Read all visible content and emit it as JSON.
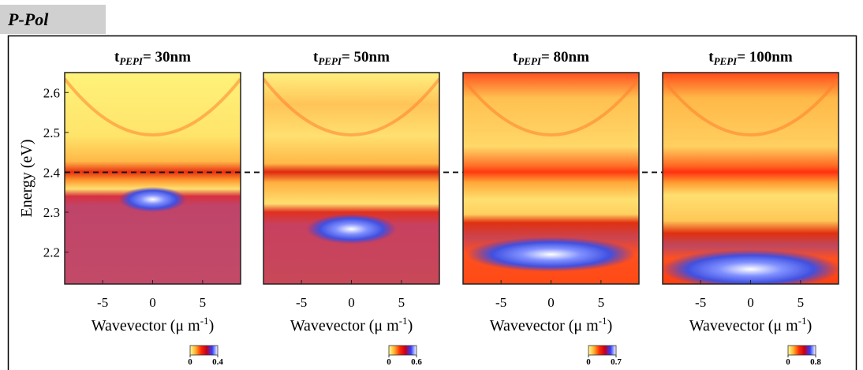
{
  "header": "P-Pol",
  "chart_data": [
    {
      "type": "heatmap",
      "title": {
        "main": "t",
        "sub": "PEPI",
        "rest": "= 30nm"
      },
      "xlabel": {
        "text": "Wavevector (μ m",
        "sup": "-1",
        "end": ")"
      },
      "ylabel": "Energy (eV)",
      "xlim": [
        -8.8,
        8.8
      ],
      "xticks": [
        -5,
        0,
        5
      ],
      "ylim": [
        2.12,
        2.65
      ],
      "yticks": [
        2.2,
        2.3,
        2.4,
        2.5,
        2.6
      ],
      "clim": [
        0,
        0.4
      ],
      "cticks": [
        0,
        0.4
      ],
      "hline": 2.4,
      "colormap": [
        "#ffff99",
        "#ffb030",
        "#ff2a00",
        "#c00020",
        "#3040ff",
        "#ffffff"
      ]
    },
    {
      "type": "heatmap",
      "title": {
        "main": "t",
        "sub": "PEPI",
        "rest": "= 50nm"
      },
      "xlabel": {
        "text": "Wavevector (μ m",
        "sup": "-1",
        "end": ")"
      },
      "xlim": [
        -8.8,
        8.8
      ],
      "xticks": [
        -5,
        0,
        5
      ],
      "ylim": [
        2.12,
        2.65
      ],
      "clim": [
        0,
        0.6
      ],
      "cticks": [
        0,
        0.6
      ],
      "colormap": [
        "#ffff99",
        "#ffb030",
        "#ff2a00",
        "#c00020",
        "#3040ff",
        "#ffffff"
      ]
    },
    {
      "type": "heatmap",
      "title": {
        "main": "t",
        "sub": "PEPI",
        "rest": "= 80nm"
      },
      "xlabel": {
        "text": "Wavevector (μ m",
        "sup": "-1",
        "end": ")"
      },
      "xlim": [
        -8.8,
        8.8
      ],
      "xticks": [
        -5,
        0,
        5
      ],
      "ylim": [
        2.12,
        2.65
      ],
      "clim": [
        0,
        0.7
      ],
      "cticks": [
        0,
        0.7
      ],
      "colormap": [
        "#ffff99",
        "#ffb030",
        "#ff2a00",
        "#c00020",
        "#3040ff",
        "#ffffff"
      ]
    },
    {
      "type": "heatmap",
      "title": {
        "main": "t",
        "sub": "PEPI",
        "rest": "= 100nm"
      },
      "xlabel": {
        "text": "Wavevector (μ m",
        "sup": "-1",
        "end": ")"
      },
      "xlim": [
        -8.8,
        8.8
      ],
      "xticks": [
        -5,
        0,
        5
      ],
      "ylim": [
        2.12,
        2.65
      ],
      "clim": [
        0,
        0.8
      ],
      "cticks": [
        0,
        0.8
      ],
      "colormap": [
        "#ffff99",
        "#ffb030",
        "#ff2a00",
        "#c00020",
        "#3040ff",
        "#ffffff"
      ]
    }
  ]
}
